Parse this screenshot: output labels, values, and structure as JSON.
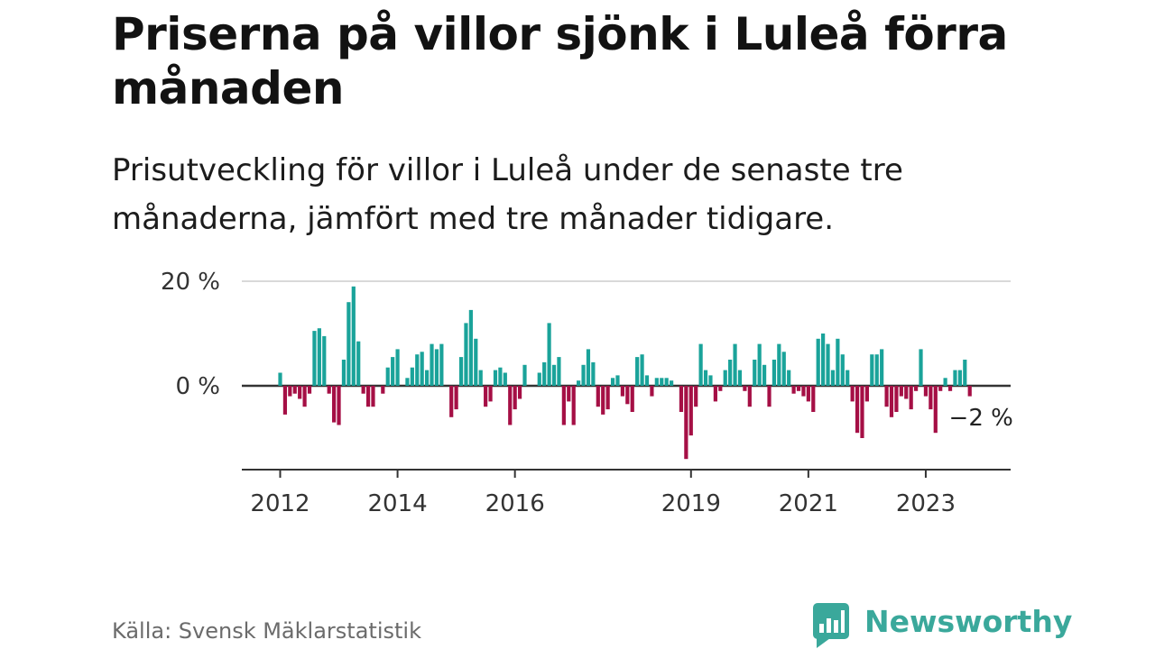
{
  "title": "Priserna på villor sjönk i Luleå förra månaden",
  "subtitle": "Prisutveckling för villor i Luleå under de senaste tre månaderna, jämfört med tre månader tidigare.",
  "source": "Källa: Svensk Mäklarstatistik",
  "brand": "Newsworthy",
  "colors": {
    "positive": "#1aa39a",
    "negative": "#a50f45",
    "brand": "#3aa89b"
  },
  "chart_data": {
    "type": "bar",
    "title": "Priserna på villor sjönk i Luleå förra månaden",
    "xlabel": "",
    "ylabel": "",
    "ylim": [
      -16,
      20
    ],
    "y_ticks": [
      {
        "value": 20,
        "label": "20 %"
      },
      {
        "value": 0,
        "label": "0 %"
      }
    ],
    "x_ticks": [
      {
        "index": 0,
        "label": "2012"
      },
      {
        "index": 24,
        "label": "2014"
      },
      {
        "index": 48,
        "label": "2016"
      },
      {
        "index": 84,
        "label": "2019"
      },
      {
        "index": 108,
        "label": "2021"
      },
      {
        "index": 132,
        "label": "2023"
      }
    ],
    "annotation": {
      "index": 143,
      "label": "−2 %"
    },
    "start": "2012-01",
    "values": [
      2.5,
      -5.5,
      -2,
      -1.5,
      -2.5,
      -4,
      -1.5,
      10.5,
      11,
      9.5,
      -1.5,
      -7,
      -7.5,
      5,
      16,
      19,
      8.5,
      -1.5,
      -4,
      -4,
      0,
      -1.5,
      3.5,
      5.5,
      7,
      0,
      1.5,
      3.5,
      6,
      6.5,
      3,
      8,
      7,
      8,
      0,
      -6,
      -4.5,
      5.5,
      12,
      14.5,
      9,
      3,
      -4,
      -3,
      3,
      3.5,
      2.5,
      -7.5,
      -4.5,
      -2.5,
      4,
      0,
      0,
      2.5,
      4.5,
      12,
      4,
      5.5,
      -7.5,
      -3,
      -7.5,
      1,
      4,
      7,
      4.5,
      -4,
      -5.5,
      -4.5,
      1.5,
      2,
      -2,
      -3.5,
      -5,
      5.5,
      6,
      2,
      -2,
      1.5,
      1.5,
      1.5,
      1,
      0,
      -5,
      -14,
      -9.5,
      -4,
      8,
      3,
      2,
      -3,
      -1,
      3,
      5,
      8,
      3,
      -1,
      -4,
      5,
      8,
      4,
      -4,
      5,
      8,
      6.5,
      3,
      -1.5,
      -1,
      -2,
      -3,
      -5,
      9,
      10,
      8,
      3,
      9,
      6,
      3,
      -3,
      -9,
      -10,
      -3,
      6,
      6,
      7,
      -4,
      -6,
      -5,
      -2,
      -2.5,
      -4.5,
      -1,
      7,
      -2,
      -4.5,
      -9,
      -1,
      1.5,
      -1,
      3,
      3,
      5,
      -2
    ]
  }
}
